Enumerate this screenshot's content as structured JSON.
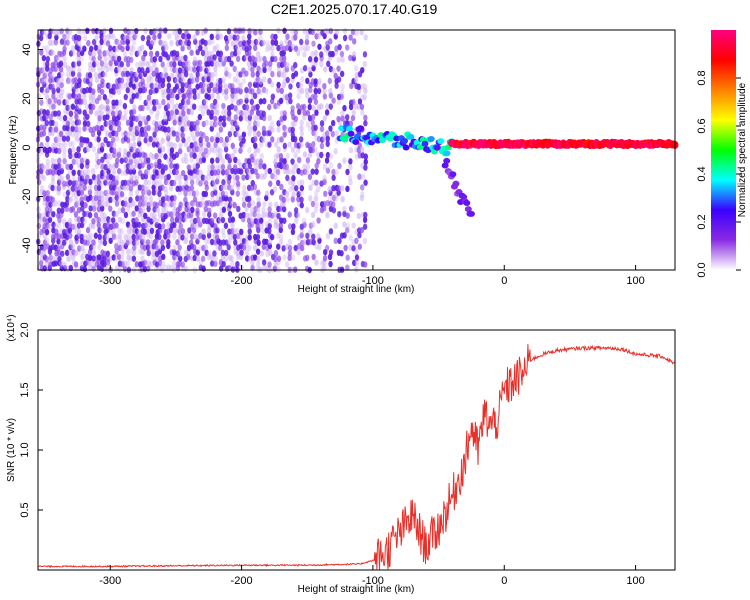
{
  "title": "C2E1.2025.070.17.40.G19",
  "chart_data": [
    {
      "type": "heatmap",
      "xlabel": "Height of straight line (km)",
      "ylabel": "Frequency (Hz)",
      "xlim": [
        -355,
        130
      ],
      "ylim": [
        -50,
        48
      ],
      "xticks": [
        -300,
        -200,
        -100,
        0,
        100
      ],
      "yticks": [
        -40,
        -20,
        0,
        20,
        40
      ],
      "colorbar": {
        "label": "Normalized spectral amplitude",
        "range": [
          0,
          1
        ],
        "ticks": [
          "0.0",
          "0.2",
          "0.4",
          "0.6",
          "0.8"
        ],
        "colors": [
          "#ffffff",
          "#8a2be2",
          "#3b00ff",
          "#00ffff",
          "#00ff00",
          "#ffff00",
          "#ff8000",
          "#ff0000",
          "#ff0080"
        ]
      },
      "regions": [
        {
          "name": "noise",
          "x_range": [
            -355,
            -105
          ],
          "y_range": [
            -50,
            48
          ],
          "amplitude": [
            0.0,
            0.15
          ]
        },
        {
          "name": "signal_onset",
          "x_range": [
            -125,
            -40
          ],
          "center_frequency": [
            6,
            0
          ],
          "amplitude": [
            0.2,
            0.45
          ]
        },
        {
          "name": "signal_tail",
          "x_range": [
            -45,
            -25
          ],
          "center_frequency": [
            -5,
            -30
          ],
          "amplitude": [
            0.1,
            0.2
          ]
        },
        {
          "name": "signal_steady",
          "x_range": [
            -40,
            130
          ],
          "center_frequency": [
            1.5,
            1.5
          ],
          "amplitude": [
            0.85,
            1.0
          ]
        }
      ]
    },
    {
      "type": "line",
      "xlabel": "Height of straight line (km)",
      "ylabel": "SNR (10 * v/v)",
      "y_multiplier": "(x10⁴)",
      "xlim": [
        -355,
        130
      ],
      "ylim": [
        0,
        2.0
      ],
      "xticks": [
        -300,
        -200,
        -100,
        0,
        100
      ],
      "yticks": [
        "0.5",
        "1.0",
        "1.5",
        "2.0"
      ],
      "color": "#e8302a",
      "series": [
        {
          "x": [
            -355,
            -300,
            -250,
            -200,
            -150,
            -110,
            -100,
            -90,
            -80,
            -70,
            -60,
            -50,
            -40,
            -30,
            -25,
            -20,
            -15,
            -10,
            -5,
            0,
            5,
            10,
            15,
            20,
            30,
            40,
            60,
            80,
            90,
            100,
            110,
            120,
            130
          ],
          "y": [
            0.03,
            0.03,
            0.035,
            0.04,
            0.04,
            0.05,
            0.08,
            0.15,
            0.3,
            0.45,
            0.2,
            0.35,
            0.6,
            0.9,
            1.2,
            1.0,
            1.3,
            1.2,
            1.25,
            1.5,
            1.55,
            1.6,
            1.65,
            1.75,
            1.8,
            1.83,
            1.85,
            1.85,
            1.84,
            1.8,
            1.79,
            1.78,
            1.72
          ]
        }
      ]
    }
  ]
}
